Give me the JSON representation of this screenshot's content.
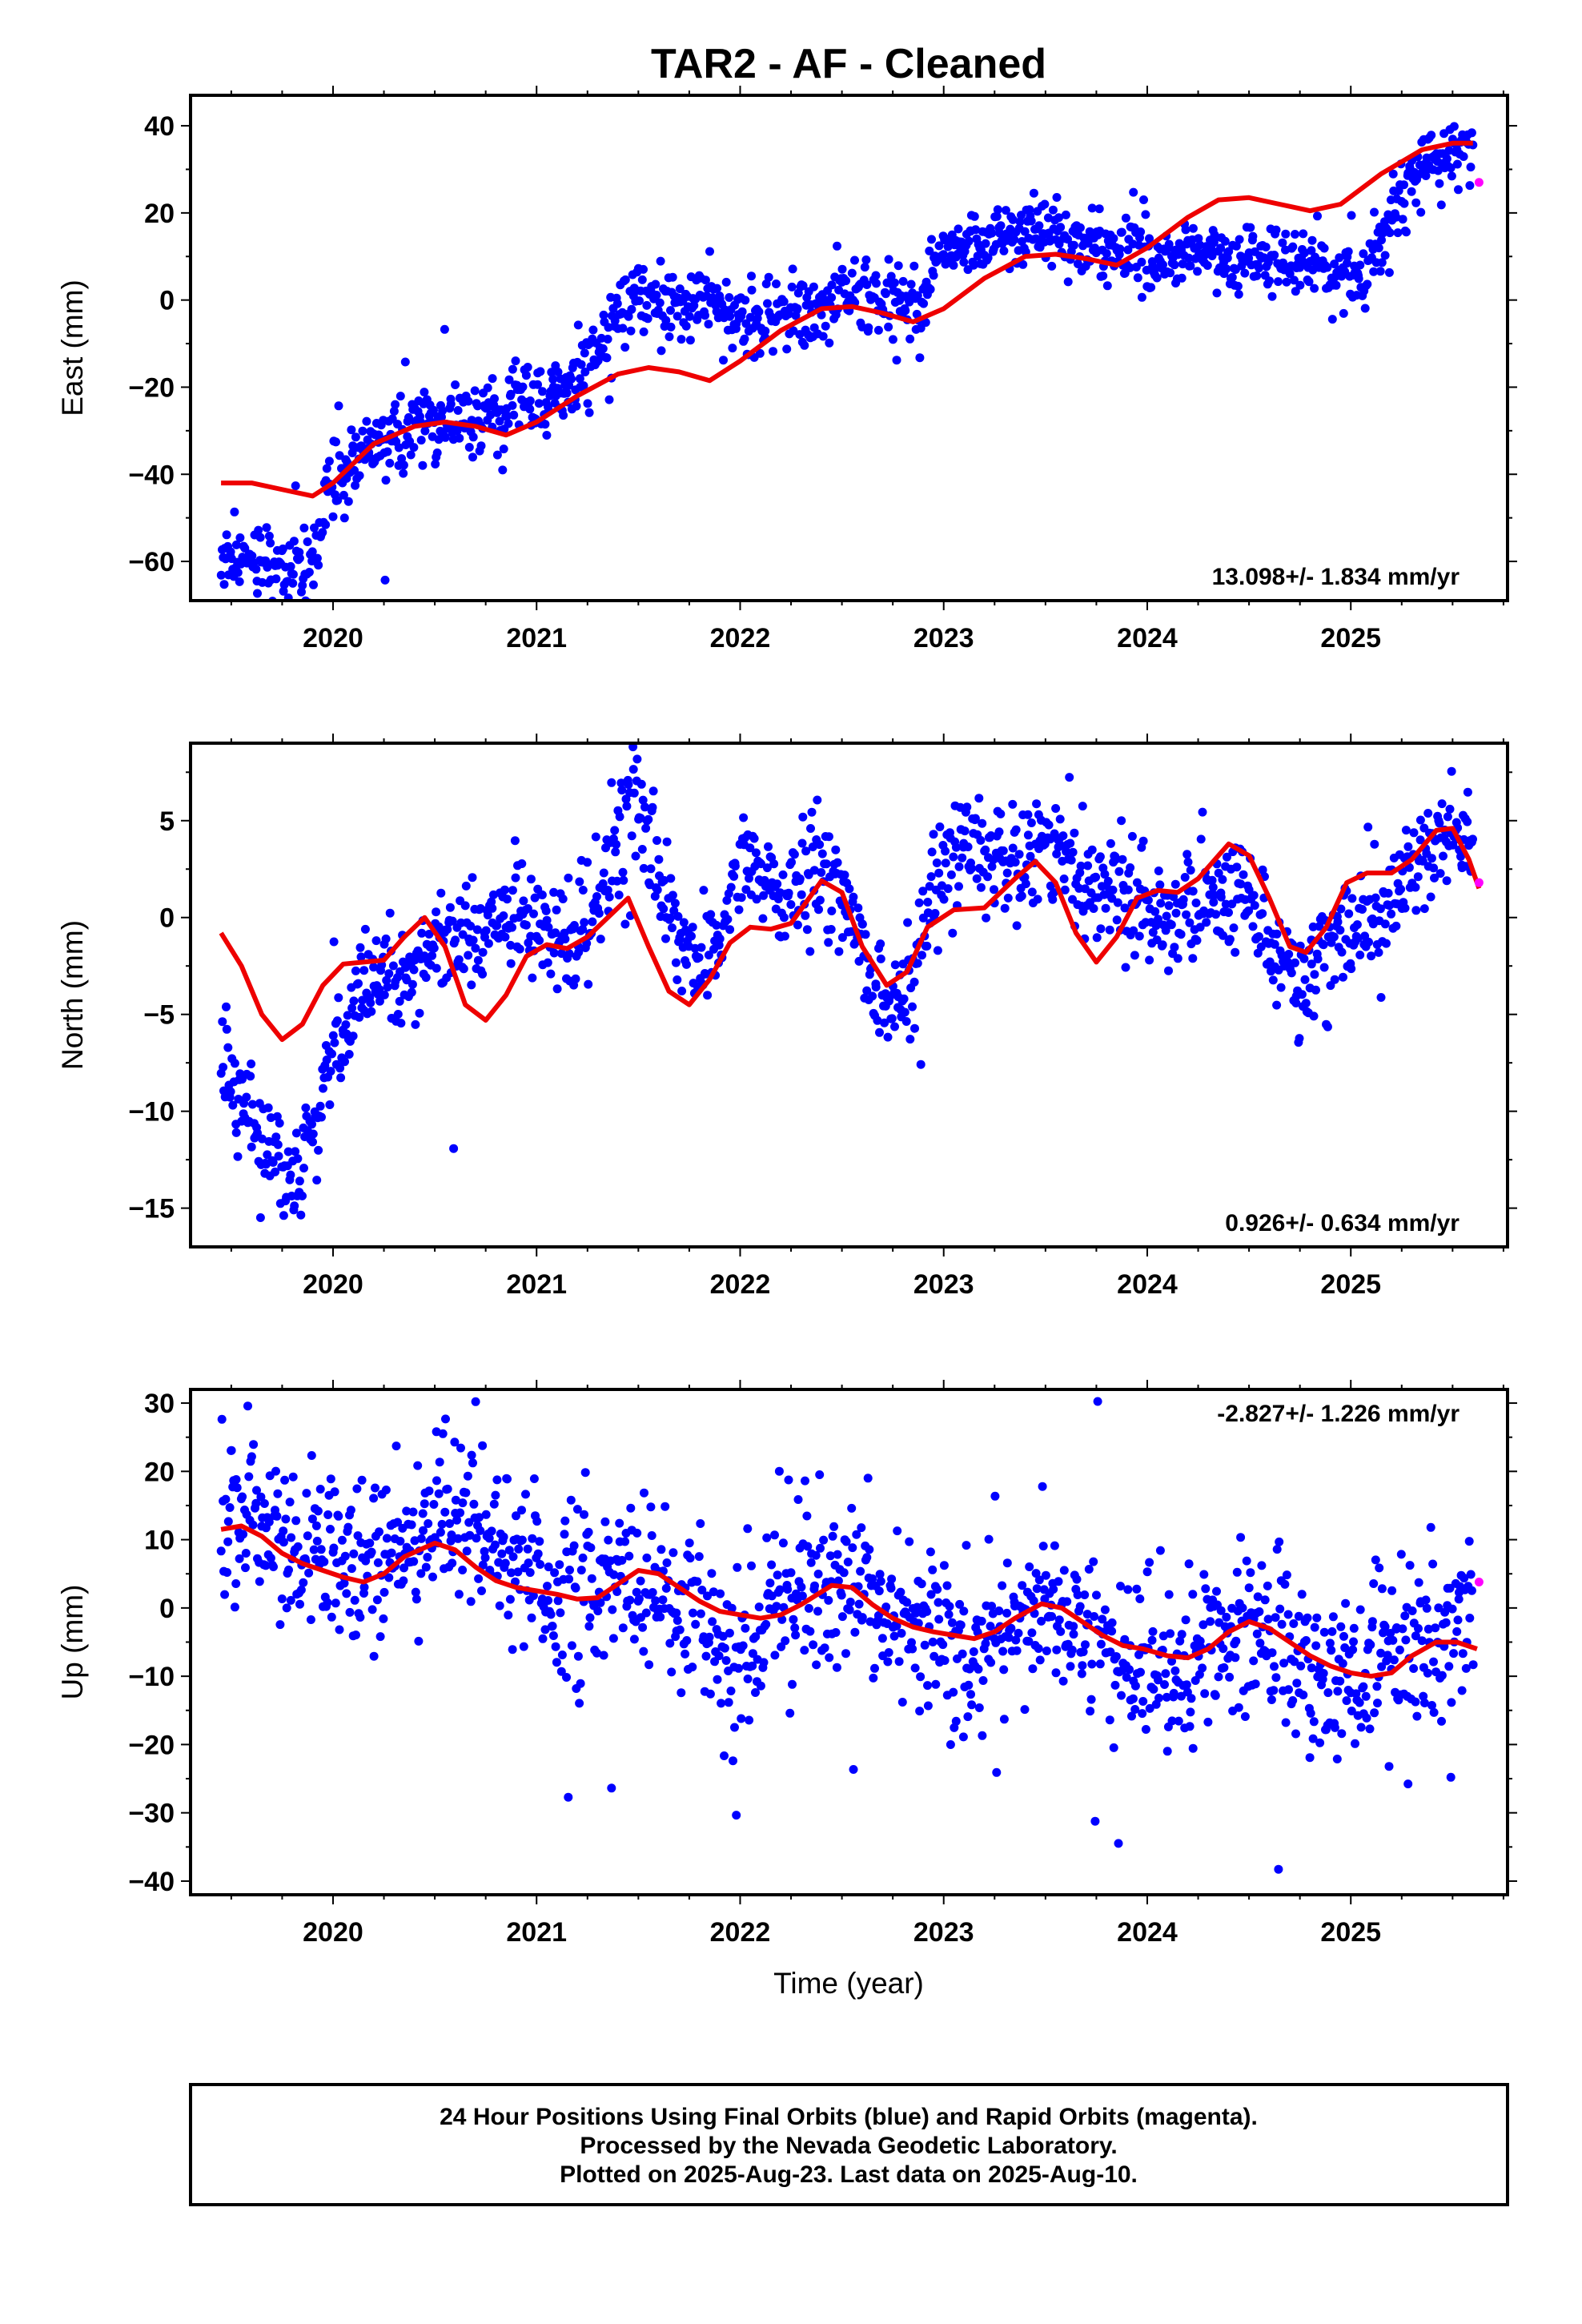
{
  "title": "TAR2  - AF - Cleaned",
  "xaxis_label": "Time (year)",
  "footer": {
    "line1": "24 Hour Positions Using Final Orbits (blue) and Rapid Orbits (magenta).",
    "line2": "Processed by the Nevada Geodetic Laboratory.",
    "line3": "Plotted on 2025-Aug-23. Last data on 2025-Aug-10."
  },
  "colors": {
    "final": "#0000ff",
    "rapid": "#ff00ff",
    "model": "#ee0000",
    "axes": "#000000"
  },
  "chart_data": [
    {
      "type": "scatter",
      "title": "",
      "ylabel": "East (mm)",
      "xlabel": "",
      "xlim": [
        2019.3,
        2025.77
      ],
      "ylim": [
        -69,
        47
      ],
      "xticks": [
        2020,
        2021,
        2022,
        2023,
        2024,
        2025
      ],
      "yticks": [
        -60,
        -40,
        -20,
        0,
        20,
        40
      ],
      "rate_text": "13.098+/- 1.834 mm/yr",
      "rate_position": "bottom-right",
      "final_orbits_trend": [
        [
          2019.45,
          -59
        ],
        [
          2019.6,
          -58
        ],
        [
          2019.75,
          -61
        ],
        [
          2019.85,
          -62
        ],
        [
          2019.92,
          -60
        ],
        [
          2019.96,
          -45
        ],
        [
          2020.05,
          -40
        ],
        [
          2020.15,
          -36
        ],
        [
          2020.3,
          -30
        ],
        [
          2020.5,
          -28
        ],
        [
          2020.7,
          -27
        ],
        [
          2020.9,
          -25
        ],
        [
          2021.05,
          -23
        ],
        [
          2021.2,
          -18
        ],
        [
          2021.3,
          -12
        ],
        [
          2021.4,
          -3
        ],
        [
          2021.5,
          2
        ],
        [
          2021.6,
          -1
        ],
        [
          2021.75,
          -2
        ],
        [
          2021.85,
          0
        ],
        [
          2021.95,
          -4
        ],
        [
          2022.1,
          -5
        ],
        [
          2022.25,
          -3
        ],
        [
          2022.4,
          -4
        ],
        [
          2022.5,
          3
        ],
        [
          2022.6,
          1
        ],
        [
          2022.75,
          0
        ],
        [
          2022.88,
          -2
        ],
        [
          2022.95,
          7
        ],
        [
          2023.1,
          12
        ],
        [
          2023.3,
          15
        ],
        [
          2023.5,
          15
        ],
        [
          2023.7,
          13
        ],
        [
          2023.85,
          11
        ],
        [
          2023.95,
          10
        ],
        [
          2024.1,
          9
        ],
        [
          2024.3,
          10
        ],
        [
          2024.5,
          10
        ],
        [
          2024.7,
          9
        ],
        [
          2024.85,
          6
        ],
        [
          2025.0,
          6
        ],
        [
          2025.1,
          8
        ],
        [
          2025.2,
          22
        ],
        [
          2025.35,
          30
        ],
        [
          2025.5,
          34
        ],
        [
          2025.6,
          35
        ]
      ],
      "scatter_amplitude": 4,
      "model_curve": [
        [
          2019.45,
          -42
        ],
        [
          2019.6,
          -42
        ],
        [
          2019.8,
          -44
        ],
        [
          2019.9,
          -45
        ],
        [
          2020.0,
          -42
        ],
        [
          2020.2,
          -33
        ],
        [
          2020.4,
          -29
        ],
        [
          2020.55,
          -28
        ],
        [
          2020.7,
          -29
        ],
        [
          2020.85,
          -31
        ],
        [
          2021.0,
          -28
        ],
        [
          2021.2,
          -22
        ],
        [
          2021.4,
          -17
        ],
        [
          2021.55,
          -15.5
        ],
        [
          2021.7,
          -16.5
        ],
        [
          2021.85,
          -18.5
        ],
        [
          2022.0,
          -14
        ],
        [
          2022.2,
          -7
        ],
        [
          2022.4,
          -2
        ],
        [
          2022.55,
          -1.5
        ],
        [
          2022.7,
          -3
        ],
        [
          2022.85,
          -5
        ],
        [
          2023.0,
          -2
        ],
        [
          2023.2,
          5
        ],
        [
          2023.4,
          10
        ],
        [
          2023.55,
          10.5
        ],
        [
          2023.7,
          9.5
        ],
        [
          2023.85,
          8
        ],
        [
          2024.0,
          12
        ],
        [
          2024.2,
          19
        ],
        [
          2024.35,
          23
        ],
        [
          2024.5,
          23.5
        ],
        [
          2024.65,
          22
        ],
        [
          2024.8,
          20.5
        ],
        [
          2024.95,
          22
        ],
        [
          2025.15,
          29
        ],
        [
          2025.35,
          34.5
        ],
        [
          2025.5,
          36
        ],
        [
          2025.6,
          36
        ]
      ],
      "rapid_orbits": [
        [
          2025.63,
          27
        ]
      ]
    },
    {
      "type": "scatter",
      "title": "",
      "ylabel": "North (mm)",
      "xlabel": "",
      "xlim": [
        2019.3,
        2025.77
      ],
      "ylim": [
        -17,
        9
      ],
      "xticks": [
        2020,
        2021,
        2022,
        2023,
        2024,
        2025
      ],
      "yticks": [
        -15,
        -10,
        -5,
        0,
        5
      ],
      "rate_text": "0.926+/- 0.634 mm/yr",
      "rate_position": "bottom-right",
      "final_orbits_trend": [
        [
          2019.45,
          -8
        ],
        [
          2019.6,
          -10
        ],
        [
          2019.72,
          -13
        ],
        [
          2019.82,
          -13.5
        ],
        [
          2019.92,
          -11
        ],
        [
          2020.0,
          -7
        ],
        [
          2020.1,
          -5
        ],
        [
          2020.25,
          -3.5
        ],
        [
          2020.4,
          -2.5
        ],
        [
          2020.5,
          -1
        ],
        [
          2020.6,
          -1
        ],
        [
          2020.75,
          -0.5
        ],
        [
          2020.9,
          0.5
        ],
        [
          2021.05,
          -1
        ],
        [
          2021.15,
          -1.5
        ],
        [
          2021.25,
          -1
        ],
        [
          2021.35,
          3
        ],
        [
          2021.45,
          5.5
        ],
        [
          2021.55,
          4
        ],
        [
          2021.7,
          -1
        ],
        [
          2021.8,
          -2.5
        ],
        [
          2021.9,
          -1
        ],
        [
          2022.0,
          3
        ],
        [
          2022.1,
          2
        ],
        [
          2022.2,
          1
        ],
        [
          2022.35,
          2
        ],
        [
          2022.5,
          1.5
        ],
        [
          2022.6,
          -2
        ],
        [
          2022.7,
          -4
        ],
        [
          2022.8,
          -4.5
        ],
        [
          2022.9,
          -2
        ],
        [
          2022.95,
          2
        ],
        [
          2023.05,
          3
        ],
        [
          2023.2,
          3.5
        ],
        [
          2023.35,
          3.5
        ],
        [
          2023.5,
          4
        ],
        [
          2023.6,
          3
        ],
        [
          2023.7,
          1
        ],
        [
          2023.8,
          2.5
        ],
        [
          2023.9,
          2
        ],
        [
          2024.0,
          0.5
        ],
        [
          2024.15,
          0
        ],
        [
          2024.3,
          1
        ],
        [
          2024.5,
          1
        ],
        [
          2024.6,
          -0.5
        ],
        [
          2024.7,
          -3
        ],
        [
          2024.75,
          -4
        ],
        [
          2024.85,
          -1.5
        ],
        [
          2024.95,
          -1
        ],
        [
          2025.05,
          -1
        ],
        [
          2025.15,
          -0.5
        ],
        [
          2025.3,
          3
        ],
        [
          2025.45,
          4.5
        ],
        [
          2025.6,
          3.5
        ]
      ],
      "scatter_amplitude": 1.4,
      "model_curve": [
        [
          2019.45,
          -0.8
        ],
        [
          2019.55,
          -2.5
        ],
        [
          2019.65,
          -5
        ],
        [
          2019.75,
          -6.3
        ],
        [
          2019.85,
          -5.5
        ],
        [
          2019.95,
          -3.5
        ],
        [
          2020.05,
          -2.4
        ],
        [
          2020.15,
          -2.3
        ],
        [
          2020.25,
          -2.2
        ],
        [
          2020.35,
          -1
        ],
        [
          2020.45,
          0
        ],
        [
          2020.55,
          -1.5
        ],
        [
          2020.65,
          -4.5
        ],
        [
          2020.75,
          -5.3
        ],
        [
          2020.85,
          -4
        ],
        [
          2020.95,
          -2
        ],
        [
          2021.05,
          -1.4
        ],
        [
          2021.15,
          -1.6
        ],
        [
          2021.25,
          -1
        ],
        [
          2021.35,
          0
        ],
        [
          2021.45,
          1
        ],
        [
          2021.55,
          -1.5
        ],
        [
          2021.65,
          -3.8
        ],
        [
          2021.75,
          -4.5
        ],
        [
          2021.85,
          -3.2
        ],
        [
          2021.95,
          -1.3
        ],
        [
          2022.05,
          -0.5
        ],
        [
          2022.15,
          -0.6
        ],
        [
          2022.25,
          -0.3
        ],
        [
          2022.4,
          1.9
        ],
        [
          2022.5,
          1.3
        ],
        [
          2022.6,
          -1.5
        ],
        [
          2022.72,
          -3.5
        ],
        [
          2022.82,
          -2.8
        ],
        [
          2022.92,
          -0.5
        ],
        [
          2023.05,
          0.4
        ],
        [
          2023.2,
          0.5
        ],
        [
          2023.35,
          2
        ],
        [
          2023.45,
          2.9
        ],
        [
          2023.55,
          1.8
        ],
        [
          2023.65,
          -0.8
        ],
        [
          2023.75,
          -2.3
        ],
        [
          2023.85,
          -1
        ],
        [
          2023.95,
          1
        ],
        [
          2024.05,
          1.4
        ],
        [
          2024.15,
          1.3
        ],
        [
          2024.25,
          2
        ],
        [
          2024.4,
          3.8
        ],
        [
          2024.5,
          3.2
        ],
        [
          2024.6,
          1
        ],
        [
          2024.7,
          -1.5
        ],
        [
          2024.78,
          -1.8
        ],
        [
          2024.88,
          -0.5
        ],
        [
          2024.98,
          1.8
        ],
        [
          2025.08,
          2.3
        ],
        [
          2025.2,
          2.3
        ],
        [
          2025.3,
          3
        ],
        [
          2025.42,
          4.5
        ],
        [
          2025.5,
          4.6
        ],
        [
          2025.58,
          3
        ],
        [
          2025.63,
          1.5
        ]
      ],
      "rapid_orbits": [
        [
          2025.63,
          1.8
        ]
      ]
    },
    {
      "type": "scatter",
      "title": "",
      "ylabel": "Up (mm)",
      "xlabel": "Time (year)",
      "xlim": [
        2019.3,
        2025.77
      ],
      "ylim": [
        -42,
        32
      ],
      "xticks": [
        2020,
        2021,
        2022,
        2023,
        2024,
        2025
      ],
      "yticks": [
        -40,
        -30,
        -20,
        -10,
        0,
        10,
        20,
        30
      ],
      "rate_text": "-2.827+/- 1.226 mm/yr",
      "rate_position": "top-right",
      "final_orbits_trend": [
        [
          2019.45,
          14
        ],
        [
          2019.6,
          14
        ],
        [
          2019.75,
          11
        ],
        [
          2019.9,
          9
        ],
        [
          2020.0,
          6
        ],
        [
          2020.15,
          5
        ],
        [
          2020.3,
          7
        ],
        [
          2020.45,
          13
        ],
        [
          2020.6,
          15
        ],
        [
          2020.75,
          12
        ],
        [
          2020.9,
          7
        ],
        [
          2021.0,
          4
        ],
        [
          2021.2,
          2
        ],
        [
          2021.35,
          1
        ],
        [
          2021.5,
          4
        ],
        [
          2021.65,
          1
        ],
        [
          2021.8,
          -3
        ],
        [
          2021.95,
          -5
        ],
        [
          2022.1,
          -4
        ],
        [
          2022.25,
          0
        ],
        [
          2022.45,
          4
        ],
        [
          2022.6,
          3
        ],
        [
          2022.75,
          0
        ],
        [
          2022.9,
          -3
        ],
        [
          2023.05,
          -5
        ],
        [
          2023.2,
          -6
        ],
        [
          2023.4,
          -2
        ],
        [
          2023.55,
          -1
        ],
        [
          2023.7,
          -4
        ],
        [
          2023.85,
          -7
        ],
        [
          2024.0,
          -8
        ],
        [
          2024.15,
          -9
        ],
        [
          2024.3,
          -6
        ],
        [
          2024.45,
          -3
        ],
        [
          2024.6,
          -4
        ],
        [
          2024.75,
          -8
        ],
        [
          2024.9,
          -11
        ],
        [
          2025.05,
          -11
        ],
        [
          2025.2,
          -7
        ],
        [
          2025.35,
          -4
        ],
        [
          2025.5,
          -2
        ],
        [
          2025.6,
          2
        ]
      ],
      "scatter_amplitude": 6,
      "model_curve": [
        [
          2019.45,
          11.5
        ],
        [
          2019.55,
          12
        ],
        [
          2019.65,
          10.5
        ],
        [
          2019.75,
          8
        ],
        [
          2019.85,
          6.5
        ],
        [
          2019.95,
          5.5
        ],
        [
          2020.05,
          4.5
        ],
        [
          2020.15,
          3.8
        ],
        [
          2020.25,
          5
        ],
        [
          2020.35,
          7.5
        ],
        [
          2020.5,
          9.5
        ],
        [
          2020.6,
          8.5
        ],
        [
          2020.7,
          6
        ],
        [
          2020.8,
          4
        ],
        [
          2020.9,
          3
        ],
        [
          2021.0,
          2.5
        ],
        [
          2021.1,
          2
        ],
        [
          2021.2,
          1.3
        ],
        [
          2021.3,
          1.5
        ],
        [
          2021.4,
          3.5
        ],
        [
          2021.5,
          5.5
        ],
        [
          2021.6,
          5
        ],
        [
          2021.7,
          3
        ],
        [
          2021.8,
          1
        ],
        [
          2021.9,
          -0.5
        ],
        [
          2022.0,
          -1
        ],
        [
          2022.1,
          -1.5
        ],
        [
          2022.2,
          -1
        ],
        [
          2022.3,
          0.5
        ],
        [
          2022.45,
          3.3
        ],
        [
          2022.55,
          3
        ],
        [
          2022.65,
          0.5
        ],
        [
          2022.75,
          -1.5
        ],
        [
          2022.85,
          -2.8
        ],
        [
          2022.95,
          -3.5
        ],
        [
          2023.05,
          -4
        ],
        [
          2023.15,
          -4.5
        ],
        [
          2023.25,
          -3.5
        ],
        [
          2023.35,
          -1.5
        ],
        [
          2023.48,
          0.6
        ],
        [
          2023.58,
          0
        ],
        [
          2023.68,
          -2
        ],
        [
          2023.78,
          -4
        ],
        [
          2023.88,
          -5.5
        ],
        [
          2023.98,
          -6
        ],
        [
          2024.1,
          -7
        ],
        [
          2024.2,
          -7.3
        ],
        [
          2024.3,
          -6
        ],
        [
          2024.4,
          -3.5
        ],
        [
          2024.5,
          -2
        ],
        [
          2024.6,
          -3
        ],
        [
          2024.7,
          -5
        ],
        [
          2024.8,
          -7
        ],
        [
          2024.9,
          -8.5
        ],
        [
          2025.0,
          -9.5
        ],
        [
          2025.1,
          -10
        ],
        [
          2025.2,
          -9.5
        ],
        [
          2025.3,
          -7
        ],
        [
          2025.42,
          -5
        ],
        [
          2025.52,
          -5
        ],
        [
          2025.62,
          -6
        ]
      ],
      "rapid_orbits": [
        [
          2025.63,
          3.8
        ]
      ]
    }
  ]
}
